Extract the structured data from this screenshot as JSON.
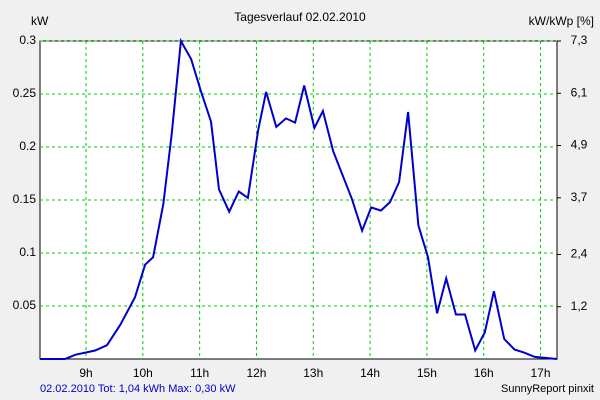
{
  "chart_data": {
    "type": "line",
    "title": "Tagesverlauf 02.02.2010",
    "y_label": "kW",
    "y2_label": "kW/kWp [%]",
    "footer_left": "02.02.2010 Tot: 1,04 kWh Max: 0,30 kW",
    "footer_right": "SunnyReport pinxit",
    "color": "#0000cc",
    "grid": true,
    "grid_color": "#00cc00",
    "x": [
      8.19,
      8.63,
      8.81,
      9.16,
      9.37,
      9.6,
      9.86,
      10.04,
      10.18,
      10.36,
      10.51,
      10.67,
      10.85,
      11.02,
      11.2,
      11.34,
      11.52,
      11.69,
      11.85,
      12.03,
      12.17,
      12.35,
      12.52,
      12.68,
      12.84,
      13.02,
      13.17,
      13.35,
      13.68,
      13.86,
      14.02,
      14.19,
      14.35,
      14.51,
      14.67,
      14.85,
      15.02,
      15.18,
      15.34,
      15.51,
      15.67,
      15.85,
      16.02,
      16.18,
      16.36,
      16.54,
      16.71,
      16.9,
      17.29
    ],
    "values": [
      0,
      0,
      0.004,
      0.008,
      0.013,
      0.032,
      0.058,
      0.089,
      0.096,
      0.146,
      0.213,
      0.3,
      0.283,
      0.253,
      0.224,
      0.16,
      0.139,
      0.158,
      0.152,
      0.216,
      0.252,
      0.219,
      0.227,
      0.223,
      0.258,
      0.218,
      0.234,
      0.196,
      0.151,
      0.121,
      0.143,
      0.14,
      0.148,
      0.167,
      0.233,
      0.126,
      0.096,
      0.043,
      0.076,
      0.042,
      0.042,
      0.008,
      0.025,
      0.064,
      0.019,
      0.009,
      0.006,
      0.002,
      0
    ],
    "xlim": [
      8.19,
      17.29
    ],
    "xticks": [
      {
        "value": 9,
        "label": "9h"
      },
      {
        "value": 10,
        "label": "10h"
      },
      {
        "value": 11,
        "label": "11h"
      },
      {
        "value": 12,
        "label": "12h"
      },
      {
        "value": 13,
        "label": "13h"
      },
      {
        "value": 14,
        "label": "14h"
      },
      {
        "value": 15,
        "label": "15h"
      },
      {
        "value": 16,
        "label": "16h"
      },
      {
        "value": 17,
        "label": "17h"
      }
    ],
    "ylim": [
      0,
      0.3
    ],
    "yticks": [
      0.05,
      0.1,
      0.15,
      0.2,
      0.25,
      0.3
    ],
    "y2lim": [
      0,
      7.3
    ],
    "y2ticks": [
      {
        "value": 1.2,
        "label": "1,2"
      },
      {
        "value": 2.4,
        "label": "2,4"
      },
      {
        "value": 3.7,
        "label": "3,7"
      },
      {
        "value": 4.9,
        "label": "4,9"
      },
      {
        "value": 6.1,
        "label": "6,1"
      },
      {
        "value": 7.3,
        "label": "7,3"
      }
    ]
  }
}
